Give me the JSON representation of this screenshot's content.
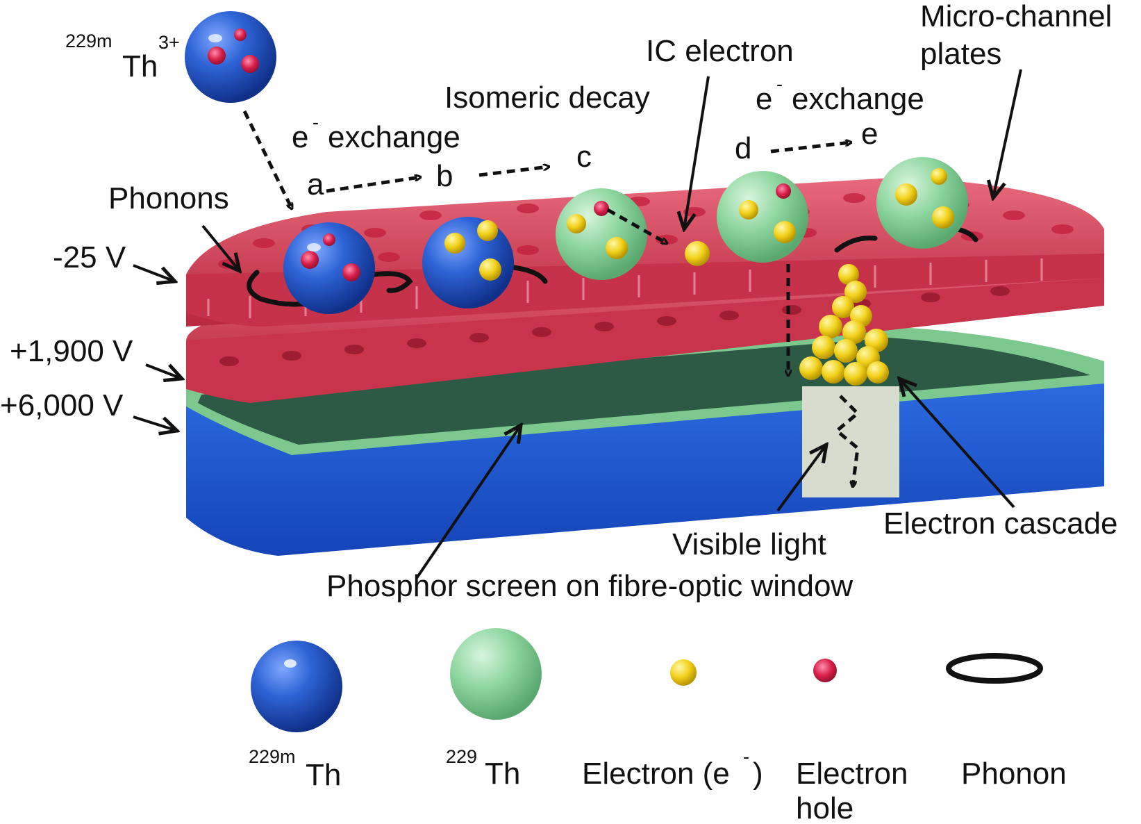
{
  "labels": {
    "ion_mass": "229m",
    "ion_symbol": "Th",
    "ion_charge": "3+",
    "phonons": "Phonons",
    "e_exchange_1_sym": "e",
    "e_exchange_1_sup": "-",
    "e_exchange_1_word": "exchange",
    "isomeric_decay": "Isomeric decay",
    "ic_electron": "IC electron",
    "e_exchange_2_sym": "e",
    "e_exchange_2_sup": "-",
    "e_exchange_2_word": "exchange",
    "micro_channel_1": "Micro-channel",
    "micro_channel_2": "plates",
    "step_a": "a",
    "step_b": "b",
    "step_c": "c",
    "step_d": "d",
    "step_e": "e",
    "voltage_top": "-25 V",
    "voltage_mid": "+1,900 V",
    "voltage_bottom": "+6,000 V",
    "electron_cascade": "Electron cascade",
    "visible_light": "Visible light",
    "phosphor_screen": "Phosphor screen on fibre-optic window"
  },
  "legend": {
    "th229m_mass": "229m",
    "th229m_symbol": "Th",
    "th229_mass": "229",
    "th229_symbol": "Th",
    "electron_text": "Electron (e",
    "electron_sup": "-",
    "electron_close": ")",
    "hole_line1": "Electron",
    "hole_line2": "hole",
    "phonon": "Phonon"
  },
  "colors": {
    "th229m_blue": "#2e63d6",
    "th229_green": "#8fd6a0",
    "electron_yellow": "#f2d21c",
    "hole_red": "#d81f4a",
    "mcp_red": "#d9455a",
    "phosphor_dark_green": "#2d5a44",
    "phosphor_rim_green": "#7cc88e",
    "window_blue": "#1f58d0",
    "light_channel": "#d8dccf"
  }
}
